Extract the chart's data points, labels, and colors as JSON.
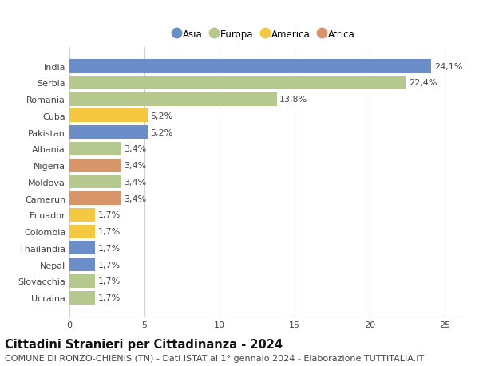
{
  "categories": [
    "Ucraina",
    "Slovacchia",
    "Nepal",
    "Thailandia",
    "Colombia",
    "Ecuador",
    "Camerun",
    "Moldova",
    "Nigeria",
    "Albania",
    "Pakistan",
    "Cuba",
    "Romania",
    "Serbia",
    "India"
  ],
  "values": [
    1.7,
    1.7,
    1.7,
    1.7,
    1.7,
    1.7,
    3.4,
    3.4,
    3.4,
    3.4,
    5.2,
    5.2,
    13.8,
    22.4,
    24.1
  ],
  "colors": [
    "#b5c98e",
    "#b5c98e",
    "#6b8ec8",
    "#6b8ec8",
    "#f5c842",
    "#f5c842",
    "#d9956a",
    "#b5c98e",
    "#d9956a",
    "#b5c98e",
    "#6b8ec8",
    "#f5c842",
    "#b5c98e",
    "#b5c98e",
    "#6b8ec8"
  ],
  "labels": [
    "1,7%",
    "1,7%",
    "1,7%",
    "1,7%",
    "1,7%",
    "1,7%",
    "3,4%",
    "3,4%",
    "3,4%",
    "3,4%",
    "5,2%",
    "5,2%",
    "13,8%",
    "22,4%",
    "24,1%"
  ],
  "legend_labels": [
    "Asia",
    "Europa",
    "America",
    "Africa"
  ],
  "legend_colors": [
    "#6b8ec8",
    "#b5c98e",
    "#f5c842",
    "#d9956a"
  ],
  "title": "Cittadini Stranieri per Cittadinanza - 2024",
  "subtitle": "COMUNE DI RONZO-CHIENIS (TN) - Dati ISTAT al 1° gennaio 2024 - Elaborazione TUTTITALIA.IT",
  "xlim": [
    0,
    26
  ],
  "xticks": [
    0,
    5,
    10,
    15,
    20,
    25
  ],
  "background_color": "#ffffff",
  "grid_color": "#d0d0d0",
  "bar_height": 0.82,
  "title_fontsize": 10.5,
  "subtitle_fontsize": 8,
  "label_fontsize": 8,
  "tick_fontsize": 8,
  "legend_fontsize": 8.5
}
